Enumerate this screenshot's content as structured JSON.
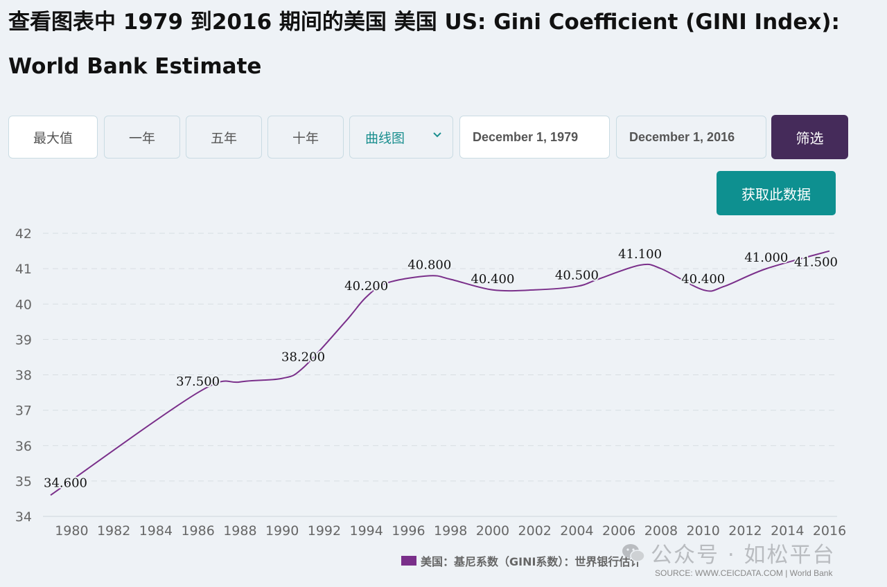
{
  "page": {
    "title_zh": "查看图表中 1979 到2016 期间的美国 美国",
    "title_en": "US: Gini Coefficient (GINI Index): World Bank Estimate"
  },
  "controls": {
    "range_buttons": [
      "最大值",
      "一年",
      "五年",
      "十年"
    ],
    "chart_type": "曲线图",
    "start_date": "December 1, 1979",
    "end_date": "December 1, 2016",
    "filter_label": "筛选",
    "get_data_label": "获取此数据"
  },
  "legend_label": "美国：基尼系数（GINI系数）：世界银行估计",
  "source_text": "SOURCE: WWW.CEICDATA.COM | World Bank",
  "watermark_text": "公众号 · 如松平台",
  "colors": {
    "line": "#7a2f8a",
    "filter_button": "#452b5a",
    "get_data_button": "#0e9090",
    "accent_text": "#1b8f8f"
  },
  "chart_data": {
    "type": "line",
    "title": "",
    "xlabel": "",
    "ylabel": "",
    "ylim": [
      34,
      42
    ],
    "xlim": [
      1979,
      2016
    ],
    "grid": true,
    "y_ticks": [
      "34",
      "35",
      "36",
      "37",
      "38",
      "39",
      "40",
      "41",
      "42"
    ],
    "x_ticks": [
      "1980",
      "1982",
      "1984",
      "1986",
      "1988",
      "1990",
      "1992",
      "1994",
      "1996",
      "1998",
      "2000",
      "2002",
      "2004",
      "2006",
      "2008",
      "2010",
      "2012",
      "2014",
      "2016"
    ],
    "series": [
      {
        "name": "美国：基尼系数（GINI系数）：世界银行估计",
        "points": [
          [
            1979,
            34.6
          ],
          [
            1986,
            37.5
          ],
          [
            1988,
            37.8
          ],
          [
            1990,
            37.9
          ],
          [
            1991,
            38.2
          ],
          [
            1993,
            39.5
          ],
          [
            1994,
            40.2
          ],
          [
            1995,
            40.6
          ],
          [
            1997,
            40.8
          ],
          [
            1998,
            40.7
          ],
          [
            2000,
            40.4
          ],
          [
            2002,
            40.4
          ],
          [
            2004,
            40.5
          ],
          [
            2005,
            40.7
          ],
          [
            2007,
            41.1
          ],
          [
            2008,
            41.0
          ],
          [
            2010,
            40.4
          ],
          [
            2011,
            40.5
          ],
          [
            2013,
            41.0
          ],
          [
            2016,
            41.5
          ]
        ]
      }
    ],
    "data_labels": [
      {
        "x": 1979,
        "y": 34.6,
        "text": "34.600"
      },
      {
        "x": 1986,
        "y": 37.5,
        "text": "37.500"
      },
      {
        "x": 1991,
        "y": 38.2,
        "text": "38.200"
      },
      {
        "x": 1994,
        "y": 40.2,
        "text": "40.200"
      },
      {
        "x": 1997,
        "y": 40.8,
        "text": "40.800"
      },
      {
        "x": 2000,
        "y": 40.4,
        "text": "40.400"
      },
      {
        "x": 2004,
        "y": 40.5,
        "text": "40.500"
      },
      {
        "x": 2007,
        "y": 41.1,
        "text": "41.100"
      },
      {
        "x": 2010,
        "y": 40.4,
        "text": "40.400"
      },
      {
        "x": 2013,
        "y": 41.0,
        "text": "41.000"
      },
      {
        "x": 2016,
        "y": 41.5,
        "text": "41.500"
      }
    ]
  }
}
